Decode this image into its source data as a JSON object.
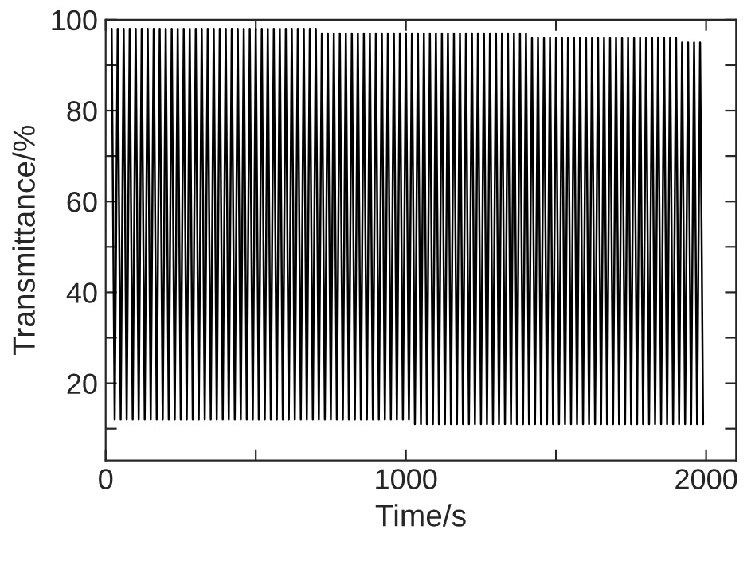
{
  "chart_data": {
    "type": "line",
    "xlabel": "Time/s",
    "ylabel": "Transmittance/%",
    "xlim": [
      0,
      2100
    ],
    "ylim": [
      3,
      100
    ],
    "xticks": [
      0,
      {
        "value": 500,
        "label": null
      },
      1000,
      {
        "value": 1500,
        "label": null
      },
      2000
    ],
    "yticks": [
      {
        "value": 10,
        "label": null
      },
      20,
      {
        "value": 30,
        "label": null
      },
      40,
      {
        "value": 50,
        "label": null
      },
      60,
      {
        "value": 70,
        "label": null
      },
      80,
      {
        "value": 90,
        "label": null
      },
      100
    ],
    "grid": false,
    "legend": false,
    "marker": "none",
    "line_style": "solid",
    "x": [
      20,
      30,
      40,
      50,
      60,
      70,
      80,
      90,
      100,
      110,
      120,
      130,
      140,
      150,
      160,
      170,
      180,
      190,
      200,
      210,
      220,
      230,
      240,
      250,
      260,
      270,
      280,
      290,
      300,
      310,
      320,
      330,
      340,
      350,
      360,
      370,
      380,
      390,
      400,
      410,
      420,
      430,
      440,
      450,
      460,
      470,
      480,
      490,
      500,
      510,
      520,
      530,
      540,
      550,
      560,
      570,
      580,
      590,
      600,
      610,
      620,
      630,
      640,
      650,
      660,
      670,
      680,
      690,
      700,
      710,
      720,
      730,
      740,
      750,
      760,
      770,
      780,
      790,
      800,
      810,
      820,
      830,
      840,
      850,
      860,
      870,
      880,
      890,
      900,
      910,
      920,
      930,
      940,
      950,
      960,
      970,
      980,
      990,
      1000,
      1010,
      1020,
      1030,
      1040,
      1050,
      1060,
      1070,
      1080,
      1090,
      1100,
      1110,
      1120,
      1130,
      1140,
      1150,
      1160,
      1170,
      1180,
      1190,
      1200,
      1210,
      1220,
      1230,
      1240,
      1250,
      1260,
      1270,
      1280,
      1290,
      1300,
      1310,
      1320,
      1330,
      1340,
      1350,
      1360,
      1370,
      1380,
      1390,
      1400,
      1410,
      1420,
      1430,
      1440,
      1450,
      1460,
      1470,
      1480,
      1490,
      1500,
      1510,
      1520,
      1530,
      1540,
      1550,
      1560,
      1570,
      1580,
      1590,
      1600,
      1610,
      1620,
      1630,
      1640,
      1650,
      1660,
      1670,
      1680,
      1690,
      1700,
      1710,
      1720,
      1730,
      1740,
      1750,
      1760,
      1770,
      1780,
      1790,
      1800,
      1810,
      1820,
      1830,
      1840,
      1850,
      1860,
      1870,
      1880,
      1890,
      1900,
      1910,
      1920,
      1930,
      1940,
      1950,
      1960,
      1970,
      1980,
      1990
    ],
    "series": [
      {
        "color": "#000000",
        "values": [
          98,
          12,
          98,
          12,
          98,
          12,
          98,
          12,
          98,
          12,
          98,
          12,
          98,
          12,
          98,
          12,
          98,
          12,
          98,
          12,
          98,
          12,
          98,
          12,
          98,
          12,
          98,
          12,
          98,
          12,
          98,
          12,
          98,
          12,
          98,
          12,
          98,
          12,
          98,
          12,
          98,
          12,
          98,
          12,
          98,
          12,
          98,
          12,
          98,
          12,
          98,
          12,
          98,
          12,
          98,
          12,
          98,
          12,
          98,
          12,
          98,
          12,
          98,
          12,
          98,
          12,
          98,
          12,
          98,
          12,
          97,
          12,
          97,
          12,
          97,
          12,
          97,
          12,
          97,
          12,
          97,
          12,
          97,
          12,
          97,
          12,
          97,
          12,
          97,
          12,
          97,
          12,
          97,
          12,
          97,
          12,
          97,
          12,
          97,
          12,
          97,
          11,
          97,
          11,
          97,
          11,
          97,
          11,
          97,
          11,
          97,
          11,
          97,
          11,
          97,
          11,
          97,
          11,
          97,
          11,
          97,
          11,
          97,
          11,
          97,
          11,
          97,
          11,
          97,
          11,
          97,
          11,
          97,
          11,
          97,
          11,
          97,
          11,
          97,
          11,
          96,
          11,
          96,
          11,
          96,
          11,
          96,
          11,
          96,
          11,
          96,
          11,
          96,
          11,
          96,
          11,
          96,
          11,
          96,
          11,
          96,
          11,
          96,
          11,
          96,
          11,
          96,
          11,
          96,
          11,
          96,
          11,
          96,
          11,
          96,
          11,
          96,
          11,
          96,
          11,
          96,
          11,
          96,
          11,
          96,
          11,
          96,
          11,
          96,
          11,
          95,
          11,
          95,
          11,
          95,
          11,
          95,
          11
        ]
      }
    ]
  }
}
